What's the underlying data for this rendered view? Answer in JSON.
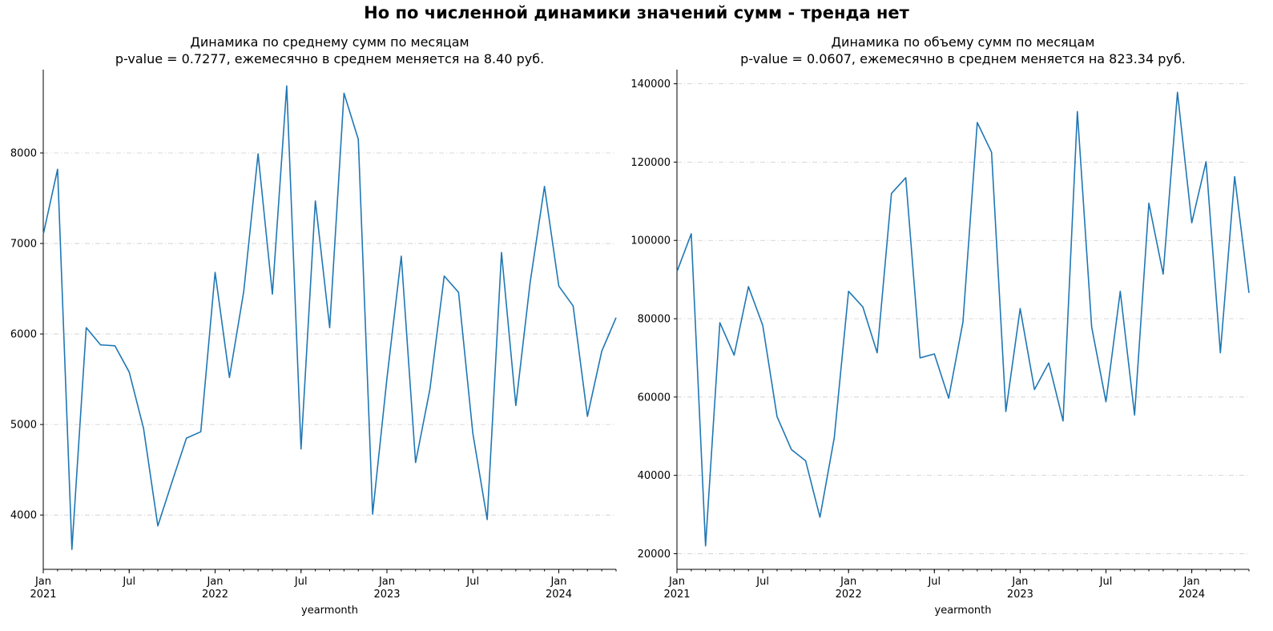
{
  "figure": {
    "suptitle": "Но по численной динамики значений сумм - тренда нет"
  },
  "chart_data": [
    {
      "type": "line",
      "title_line1": "Динамика по среднему сумм по месяцам",
      "title_line2": "p-value = 0.7277, ежемесячно в среднем меняется на 8.40 руб.",
      "xlabel": "yearmonth",
      "ylabel": "",
      "grid": "horizontal dash-dot",
      "x_start": "2021-01",
      "x_end": "2024-05",
      "xlim": [
        0,
        40
      ],
      "ylim": [
        3400,
        8920
      ],
      "yticks": [
        4000,
        5000,
        6000,
        7000,
        8000
      ],
      "xticks": [
        {
          "month_index": 0,
          "label": "Jan",
          "year": "2021"
        },
        {
          "month_index": 6,
          "label": "Jul",
          "year": ""
        },
        {
          "month_index": 12,
          "label": "Jan",
          "year": "2022"
        },
        {
          "month_index": 18,
          "label": "Jul",
          "year": ""
        },
        {
          "month_index": 24,
          "label": "Jan",
          "year": "2023"
        },
        {
          "month_index": 30,
          "label": "Jul",
          "year": ""
        },
        {
          "month_index": 36,
          "label": "Jan",
          "year": "2024"
        }
      ],
      "values": [
        7100,
        7820,
        3620,
        6070,
        5880,
        5870,
        5580,
        4960,
        3880,
        4370,
        4850,
        4920,
        6680,
        5520,
        6470,
        7990,
        6440,
        8740,
        4730,
        7470,
        6070,
        8660,
        8150,
        4010,
        5510,
        6860,
        4580,
        5390,
        6640,
        6460,
        4900,
        3950,
        6900,
        5210,
        6570,
        7630,
        6530,
        6310,
        5090,
        5810,
        6180
      ]
    },
    {
      "type": "line",
      "title_line1": "Динамика по объему сумм по месяцам",
      "title_line2": "p-value = 0.0607, ежемесячно в среднем меняется на 823.34 руб.",
      "xlabel": "yearmonth",
      "ylabel": "",
      "grid": "horizontal dash-dot",
      "x_start": "2021-01",
      "x_end": "2024-05",
      "xlim": [
        0,
        40
      ],
      "ylim": [
        16000,
        143600
      ],
      "yticks": [
        20000,
        40000,
        60000,
        80000,
        100000,
        120000,
        140000
      ],
      "xticks": [
        {
          "month_index": 0,
          "label": "Jan",
          "year": "2021"
        },
        {
          "month_index": 6,
          "label": "Jul",
          "year": ""
        },
        {
          "month_index": 12,
          "label": "Jan",
          "year": "2022"
        },
        {
          "month_index": 18,
          "label": "Jul",
          "year": ""
        },
        {
          "month_index": 24,
          "label": "Jan",
          "year": "2023"
        },
        {
          "month_index": 30,
          "label": "Jul",
          "year": ""
        },
        {
          "month_index": 36,
          "label": "Jan",
          "year": "2024"
        }
      ],
      "values": [
        92000,
        101700,
        22000,
        79000,
        70700,
        88200,
        78300,
        55000,
        46600,
        43700,
        29300,
        49600,
        87000,
        83000,
        71300,
        112000,
        116000,
        70000,
        71000,
        59700,
        79200,
        130100,
        122500,
        56300,
        82600,
        61900,
        68700,
        53900,
        132900,
        77900,
        58800,
        87000,
        55400,
        109500,
        91400,
        137800,
        104500,
        120100,
        71300,
        116300,
        86600
      ]
    }
  ]
}
